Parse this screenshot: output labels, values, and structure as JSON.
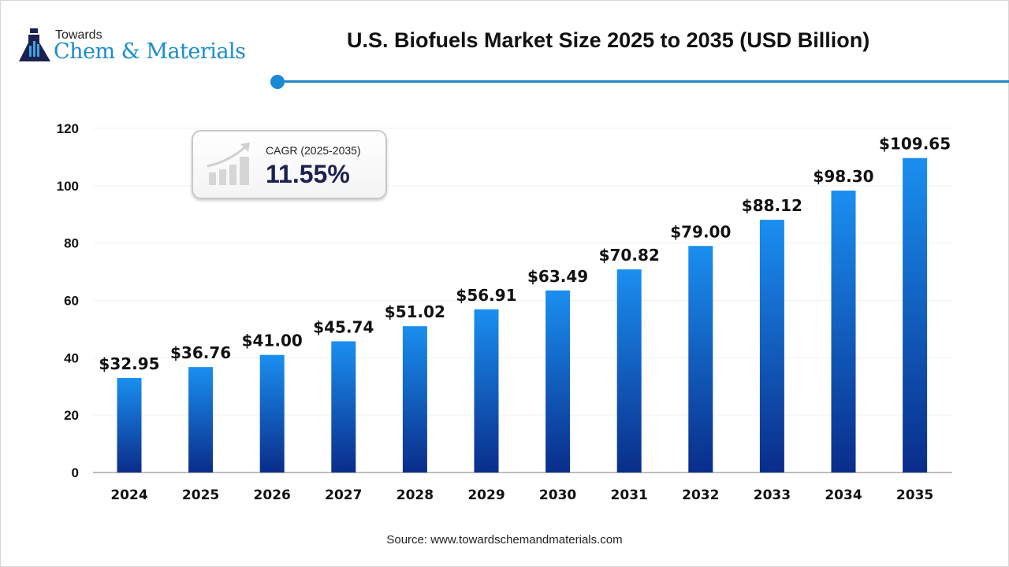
{
  "logo": {
    "top": "Towards",
    "main": "Chem & Materials"
  },
  "cagr": {
    "label": "CAGR (2025-2035)",
    "value": "11.55%",
    "icon": "growth-chart-icon"
  },
  "source": "Source: www.towardschemandmaterials.com",
  "colors": {
    "bar_top": "#1a8ff0",
    "bar_bottom": "#0a2d8a",
    "accent": "#1f85c4"
  },
  "chart_data": {
    "type": "bar",
    "title": "U.S. Biofuels Market Size 2025 to 2035 (USD Billion)",
    "categories": [
      "2024",
      "2025",
      "2026",
      "2027",
      "2028",
      "2029",
      "2030",
      "2031",
      "2032",
      "2033",
      "2034",
      "2035"
    ],
    "values": [
      32.95,
      36.76,
      41.0,
      45.74,
      51.02,
      56.91,
      63.49,
      70.82,
      79.0,
      88.12,
      98.3,
      109.65
    ],
    "data_labels": [
      "$32.95",
      "$36.76",
      "$41.00",
      "$45.74",
      "$51.02",
      "$56.91",
      "$63.49",
      "$70.82",
      "$79.00",
      "$88.12",
      "$98.30",
      "$109.65"
    ],
    "yticks": [
      0,
      20,
      40,
      60,
      80,
      100,
      120
    ],
    "ylim": [
      0,
      120
    ],
    "grid": true,
    "xlabel": "",
    "ylabel": ""
  }
}
